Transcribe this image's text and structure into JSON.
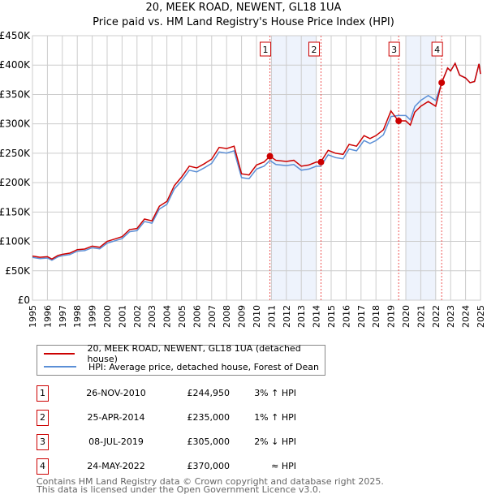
{
  "chart_data": {
    "type": "line",
    "title": "20, MEEK ROAD, NEWENT, GL18 1UA",
    "subtitle": "Price paid vs. HM Land Registry's House Price Index (HPI)",
    "xlim": [
      1995,
      2025
    ],
    "ylim": [
      0,
      450000
    ],
    "yticks": [
      "£0",
      "£50K",
      "£100K",
      "£150K",
      "£200K",
      "£250K",
      "£300K",
      "£350K",
      "£400K",
      "£450K"
    ],
    "xticks": [
      "1995",
      "1996",
      "1997",
      "1998",
      "1999",
      "2000",
      "2001",
      "2002",
      "2003",
      "2004",
      "2005",
      "2006",
      "2007",
      "2008",
      "2009",
      "2010",
      "2011",
      "2012",
      "2013",
      "2014",
      "2015",
      "2016",
      "2017",
      "2018",
      "2019",
      "2020",
      "2021",
      "2022",
      "2023",
      "2024",
      "2025"
    ],
    "series": [
      {
        "name": "20, MEEK ROAD, NEWENT, GL18 1UA (detached house)",
        "color": "#cc0000",
        "x": [
          1995,
          1995.5,
          1996,
          1996.3,
          1996.7,
          1997,
          1997.5,
          1998,
          1998.5,
          1999,
          1999.5,
          2000,
          2000.5,
          2001,
          2001.5,
          2002,
          2002.5,
          2003,
          2003.5,
          2004,
          2004.5,
          2005,
          2005.5,
          2006,
          2006.5,
          2007,
          2007.5,
          2008,
          2008.5,
          2009,
          2009.5,
          2010,
          2010.5,
          2010.9,
          2011.3,
          2012,
          2012.5,
          2013,
          2013.5,
          2014,
          2014.3,
          2014.8,
          2015.3,
          2015.8,
          2016.2,
          2016.7,
          2017.2,
          2017.6,
          2018,
          2018.5,
          2019,
          2019.5,
          2020,
          2020.3,
          2020.6,
          2021,
          2021.5,
          2022,
          2022.4,
          2022.8,
          2023,
          2023.3,
          2023.6,
          2024,
          2024.3,
          2024.6,
          2024.9,
          2025
        ],
        "y": [
          75000,
          73000,
          74000,
          70000,
          76000,
          78000,
          80000,
          86000,
          87000,
          92000,
          90000,
          100000,
          104000,
          108000,
          120000,
          122000,
          138000,
          135000,
          160000,
          168000,
          195000,
          210000,
          228000,
          225000,
          232000,
          240000,
          260000,
          258000,
          262000,
          215000,
          213000,
          230000,
          235000,
          244950,
          238000,
          236000,
          238000,
          228000,
          230000,
          235000,
          235000,
          255000,
          250000,
          248000,
          265000,
          262000,
          280000,
          275000,
          280000,
          290000,
          322000,
          305000,
          305000,
          298000,
          320000,
          330000,
          338000,
          330000,
          370000,
          395000,
          390000,
          403000,
          383000,
          378000,
          370000,
          372000,
          402000,
          385000
        ]
      },
      {
        "name": "HPI: Average price, detached house, Forest of Dean",
        "color": "#5b8fd6"
      }
    ],
    "sales": [
      {
        "n": "1",
        "date": "26-NOV-2010",
        "price": "£244,950",
        "hpi": "3% ↑ HPI",
        "x": 2010.9,
        "y": 244950
      },
      {
        "n": "2",
        "date": "25-APR-2014",
        "price": "£235,000",
        "hpi": "1% ↑ HPI",
        "x": 2014.32,
        "y": 235000
      },
      {
        "n": "3",
        "date": "08-JUL-2019",
        "price": "£305,000",
        "hpi": "2% ↓ HPI",
        "x": 2019.52,
        "y": 305000
      },
      {
        "n": "4",
        "date": "24-MAY-2022",
        "price": "£370,000",
        "hpi": "≈ HPI",
        "x": 2022.4,
        "y": 370000
      }
    ],
    "shaded": [
      [
        2011,
        2014
      ],
      [
        2020,
        2022
      ]
    ]
  },
  "footer": {
    "line1": "Contains HM Land Registry data © Crown copyright and database right 2025.",
    "line2": "This data is licensed under the Open Government Licence v3.0."
  }
}
